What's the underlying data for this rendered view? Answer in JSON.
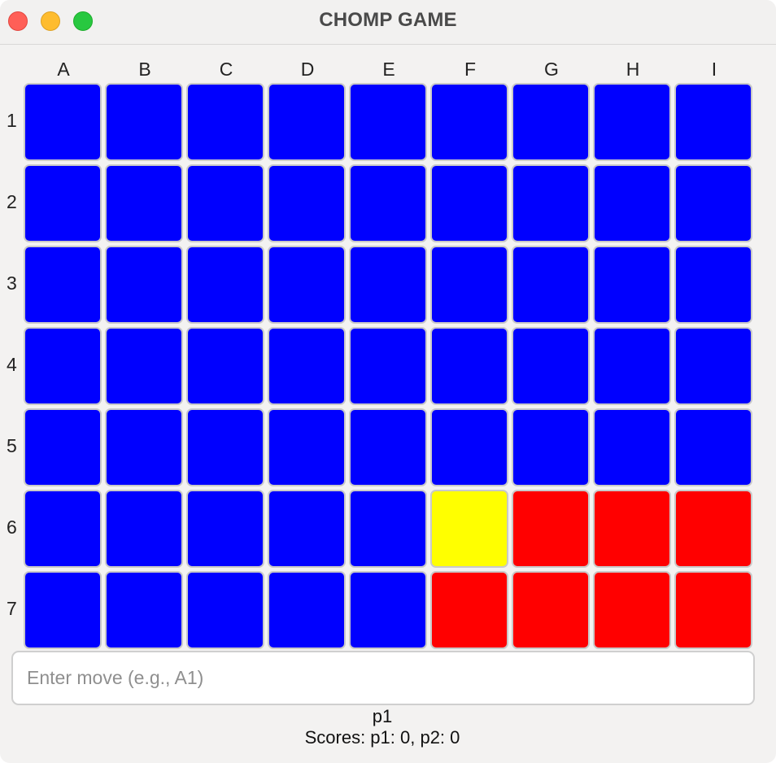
{
  "window": {
    "title": "CHOMP GAME"
  },
  "board": {
    "columns": [
      "A",
      "B",
      "C",
      "D",
      "E",
      "F",
      "G",
      "H",
      "I"
    ],
    "rows": [
      "1",
      "2",
      "3",
      "4",
      "5",
      "6",
      "7"
    ],
    "colors": {
      "blue": "#0000ff",
      "red": "#ff0000",
      "yellow": "#ffff00"
    },
    "cells": [
      [
        "blue",
        "blue",
        "blue",
        "blue",
        "blue",
        "blue",
        "blue",
        "blue",
        "blue"
      ],
      [
        "blue",
        "blue",
        "blue",
        "blue",
        "blue",
        "blue",
        "blue",
        "blue",
        "blue"
      ],
      [
        "blue",
        "blue",
        "blue",
        "blue",
        "blue",
        "blue",
        "blue",
        "blue",
        "blue"
      ],
      [
        "blue",
        "blue",
        "blue",
        "blue",
        "blue",
        "blue",
        "blue",
        "blue",
        "blue"
      ],
      [
        "blue",
        "blue",
        "blue",
        "blue",
        "blue",
        "blue",
        "blue",
        "blue",
        "blue"
      ],
      [
        "blue",
        "blue",
        "blue",
        "blue",
        "blue",
        "yellow",
        "red",
        "red",
        "red"
      ],
      [
        "blue",
        "blue",
        "blue",
        "blue",
        "blue",
        "red",
        "red",
        "red",
        "red"
      ]
    ]
  },
  "input": {
    "value": "",
    "placeholder": "Enter move (e.g., A1)"
  },
  "status": {
    "current_player": "p1",
    "scores": "Scores: p1: 0, p2: 0"
  }
}
